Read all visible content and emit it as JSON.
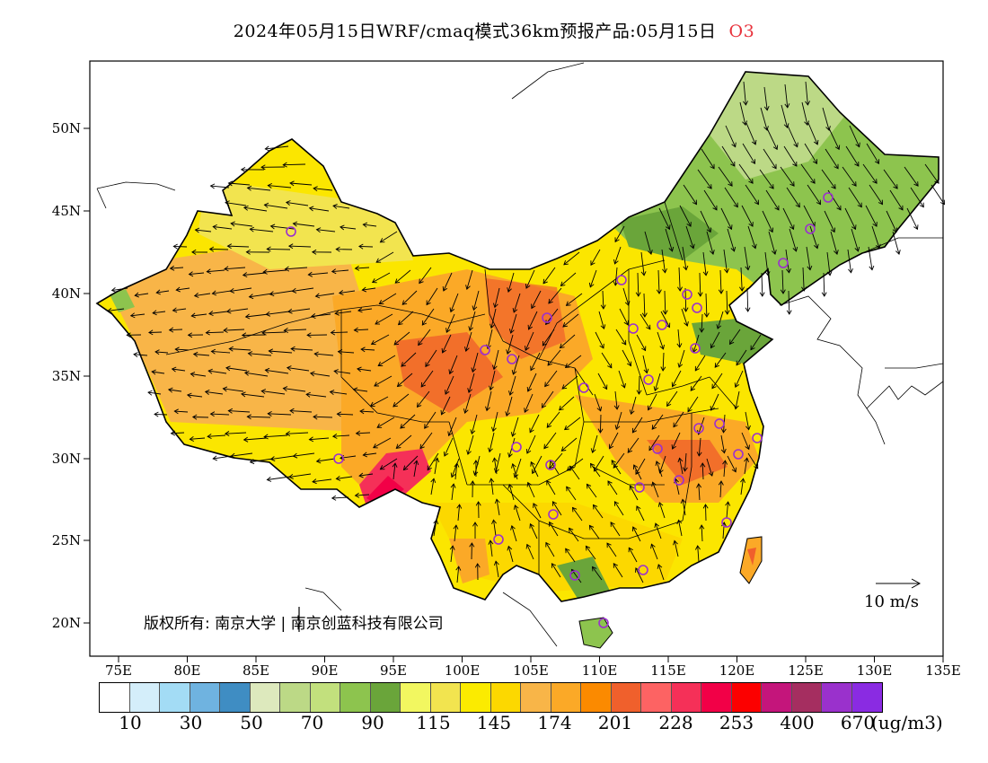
{
  "title": {
    "main": "2024年05月15日WRF/cmaq模式36km预报产品:05月15日",
    "species": "O3"
  },
  "map": {
    "lat_labels": [
      "50N",
      "45N",
      "40N",
      "35N",
      "30N",
      "25N",
      "20N"
    ],
    "lon_labels": [
      "75E",
      "80E",
      "85E",
      "90E",
      "95E",
      "100E",
      "105E",
      "110E",
      "115E",
      "120E",
      "125E",
      "130E",
      "135E"
    ],
    "lon_range": [
      73,
      135
    ],
    "lat_range": [
      18,
      54
    ],
    "wind_reference": "10 m/s",
    "copyright": "版权所有: 南京大学 | 南京创蓝科技有限公司",
    "station_color": "#9b2fd0"
  },
  "legend": {
    "colors": [
      "#ffffff",
      "#d4eefa",
      "#a3dcf5",
      "#6fb3e0",
      "#3f8dc3",
      "#dde9bd",
      "#bcd986",
      "#c2e07d",
      "#8dc44e",
      "#6aa53a",
      "#f2f760",
      "#f2e44f",
      "#fbeb00",
      "#fcd800",
      "#f8b548",
      "#fba927",
      "#fb8a00",
      "#f0602c",
      "#fd6363",
      "#f53058",
      "#f20047",
      "#fc0000",
      "#c4157b",
      "#a52e60",
      "#9a31cc",
      "#8a2be2"
    ],
    "labels": [
      "10",
      "30",
      "50",
      "70",
      "90",
      "115",
      "145",
      "174",
      "201",
      "228",
      "253",
      "400",
      "670"
    ],
    "unit": "(ug/m3)"
  }
}
